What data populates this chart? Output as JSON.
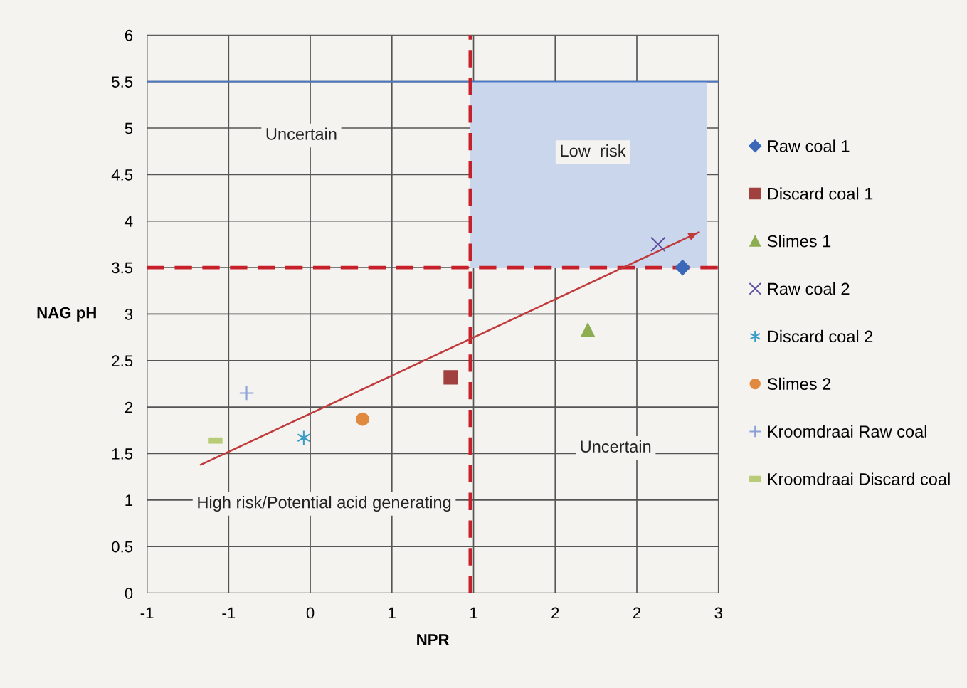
{
  "chart_data": {
    "type": "scatter",
    "xlabel": "NPR",
    "ylabel": "NAG pH",
    "xlim": [
      -1,
      2.5
    ],
    "xticks": [
      {
        "value": -1,
        "label": "-1"
      },
      {
        "value": -0.5,
        "label": "-1"
      },
      0,
      {
        "value": 0.5,
        "label": "1"
      },
      1,
      {
        "value": 1.5,
        "label": "2"
      },
      {
        "value": 2,
        "label": "2"
      },
      {
        "value": 2.5,
        "label": "3"
      }
    ],
    "ylim": [
      0,
      6
    ],
    "yticks": [
      0,
      0.5,
      1,
      1.5,
      2,
      2.5,
      3,
      3.5,
      4,
      4.5,
      5,
      5.5,
      6
    ],
    "grid": true,
    "legend": "right",
    "series": [
      {
        "name": "Raw coal 1",
        "color": "#3b68b8",
        "marker": "diamond",
        "x": [
          2.28
        ],
        "values": [
          3.5
        ]
      },
      {
        "name": "Discard coal 1",
        "color": "#a0403f",
        "marker": "square",
        "x": [
          0.86
        ],
        "values": [
          2.32
        ]
      },
      {
        "name": "Slimes 1",
        "color": "#8cae50",
        "marker": "triangle",
        "x": [
          1.7
        ],
        "values": [
          2.83
        ]
      },
      {
        "name": "Raw coal 2",
        "color": "#5e50a0",
        "marker": "x",
        "x": [
          2.13
        ],
        "values": [
          3.75
        ]
      },
      {
        "name": "Discard coal 2",
        "color": "#3d9dc8",
        "marker": "cross",
        "x": [
          -0.04
        ],
        "values": [
          1.67
        ]
      },
      {
        "name": "Slimes 2",
        "color": "#e08a40",
        "marker": "circle",
        "x": [
          0.32
        ],
        "values": [
          1.87
        ]
      },
      {
        "name": "Kroomdraai Raw coal",
        "color": "#8aa0d8",
        "marker": "plus",
        "x": [
          -0.39
        ],
        "values": [
          2.15
        ]
      },
      {
        "name": "Kroomdraai Discard coal",
        "color": "#b8cc78",
        "x": [
          -0.58
        ],
        "values": [
          1.64
        ]
      },
      {
        "type": "line",
        "color": "#c0393b",
        "marker": "none",
        "x": [
          -0.67,
          2.38
        ],
        "values": [
          1.38,
          3.88
        ]
      }
    ],
    "bands": [
      {
        "axis": "x",
        "from": 0.98,
        "to": 2.43,
        "color": "#c9d6ec"
      }
    ],
    "ref_lines": [
      {
        "axis": "y",
        "value": 5.5,
        "color": "#4a78c8",
        "line_style": "solid"
      },
      {
        "axis": "y",
        "value": 3.5,
        "color": "#c8202a",
        "line_style": "dashed"
      },
      {
        "axis": "x",
        "value": 0.98,
        "color": "#c8202a",
        "line_style": "dashed"
      }
    ],
    "annotations": [
      "Uncertain",
      "Low  risk",
      "Uncertain",
      "High risk/Potential acid generating"
    ]
  }
}
